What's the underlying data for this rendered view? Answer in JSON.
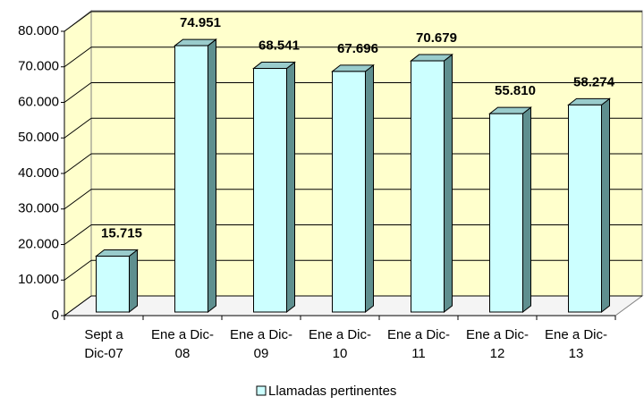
{
  "chart_data": {
    "type": "bar3d",
    "categories": [
      [
        "Sept a",
        "Dic-07"
      ],
      [
        "Ene a Dic-",
        "08"
      ],
      [
        "Ene a Dic-",
        "09"
      ],
      [
        "Ene a Dic-",
        "10"
      ],
      [
        "Ene a Dic-",
        "11"
      ],
      [
        "Ene a Dic-",
        "12"
      ],
      [
        "Ene a Dic-",
        "13"
      ]
    ],
    "series": [
      {
        "name": "Llamadas pertinentes",
        "color": "#ccffff",
        "values": [
          15715,
          74951,
          68541,
          67696,
          70679,
          55810,
          58274
        ],
        "value_labels": [
          "15.715",
          "74.951",
          "68.541",
          "67.696",
          "70.679",
          "55.810",
          "58.274"
        ]
      }
    ],
    "ylim": [
      0,
      80000
    ],
    "yticks": [
      0,
      {
        "value": 10000,
        "label": "10.000"
      },
      {
        "value": 20000,
        "label": "20.000"
      },
      {
        "value": 30000,
        "label": "30.000"
      },
      {
        "value": 40000,
        "label": "40.000"
      },
      {
        "value": 50000,
        "label": "50.000"
      },
      {
        "value": 60000,
        "label": "60.000"
      },
      {
        "value": 70000,
        "label": "70.000"
      },
      {
        "value": 80000,
        "label": "80.000"
      }
    ],
    "grid": true,
    "legend": "bottom"
  }
}
